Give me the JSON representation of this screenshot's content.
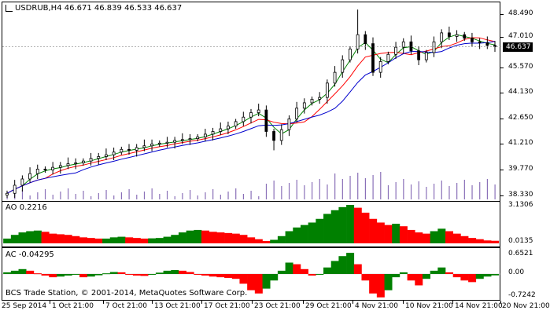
{
  "chart": {
    "symbol_line": "USDRUB,H4  46.671 46.839 46.533 46.637",
    "last_price": "46.637",
    "price_axis": [
      "48.490",
      "47.010",
      "45.570",
      "44.130",
      "42.650",
      "41.210",
      "39.770",
      "38.330"
    ],
    "ao_label": "AO 0.2216",
    "ao_axis": [
      "3.1306",
      "0.0135"
    ],
    "ac_label": "AC -0.04295",
    "ac_axis": [
      "0.6521",
      "0.00",
      "-0.7242"
    ],
    "copyright": "BCS Trade Station, © 2001-2014, MetaQuotes Software Corp.",
    "time_axis": [
      "25 Sep 2014",
      "1 Oct 21:00",
      "7 Oct 21:00",
      "13 Oct 21:00",
      "17 Oct 21:00",
      "23 Oct 21:00",
      "29 Oct 21:00",
      "4 Nov 21:00",
      "10 Nov 21:00",
      "14 Nov 21:00",
      "20 Nov 21:00"
    ],
    "colors": {
      "up": "#008000",
      "down": "#ff0000",
      "ma_fast": "#008000",
      "ma_mid": "#ff0000",
      "ma_slow": "#0000cd",
      "volume": "#8a70b8",
      "candle": "#000000"
    }
  },
  "chart_data": {
    "type": "candlestick",
    "symbol": "USDRUB",
    "timeframe": "H4",
    "ohlc_last": {
      "open": 46.671,
      "high": 46.839,
      "low": 46.533,
      "close": 46.637
    },
    "price_range": [
      38.33,
      48.49
    ],
    "series": [
      {
        "name": "Close",
        "values": [
          38.45,
          38.9,
          39.25,
          39.55,
          39.8,
          39.75,
          39.9,
          40.0,
          40.1,
          40.15,
          40.25,
          40.4,
          40.5,
          40.6,
          40.75,
          40.9,
          40.85,
          41.0,
          41.1,
          41.2,
          41.25,
          41.3,
          41.4,
          41.45,
          41.5,
          41.6,
          41.75,
          41.9,
          42.05,
          42.2,
          42.45,
          42.7,
          42.95,
          43.1,
          41.9,
          41.4,
          42.0,
          42.6,
          43.2,
          43.5,
          43.7,
          43.8,
          44.6,
          45.2,
          45.9,
          46.5,
          47.3,
          46.8,
          45.2,
          45.8,
          46.2,
          46.6,
          46.9,
          46.4,
          45.9,
          46.3,
          46.9,
          47.4,
          47.2,
          47.3,
          47.1,
          46.9,
          46.85,
          46.7,
          46.637
        ]
      },
      {
        "name": "AO",
        "values": [
          0.4,
          0.7,
          0.9,
          1.0,
          1.05,
          0.95,
          0.8,
          0.75,
          0.7,
          0.6,
          0.5,
          0.45,
          0.4,
          0.4,
          0.5,
          0.55,
          0.5,
          0.45,
          0.4,
          0.42,
          0.45,
          0.55,
          0.7,
          0.9,
          1.05,
          1.1,
          1.05,
          0.95,
          0.9,
          0.85,
          0.8,
          0.7,
          0.5,
          0.35,
          0.2,
          0.3,
          0.6,
          1.0,
          1.3,
          1.5,
          1.7,
          2.0,
          2.4,
          2.7,
          2.95,
          3.13,
          2.9,
          2.5,
          2.0,
          1.7,
          1.5,
          1.6,
          1.4,
          1.1,
          0.9,
          0.8,
          1.0,
          1.2,
          1.0,
          0.8,
          0.6,
          0.45,
          0.35,
          0.25,
          0.2216
        ]
      },
      {
        "name": "AC",
        "values": [
          0.05,
          0.1,
          0.15,
          0.1,
          0.02,
          -0.05,
          -0.1,
          -0.08,
          -0.05,
          -0.02,
          -0.1,
          -0.08,
          -0.04,
          0.02,
          0.06,
          0.05,
          0.0,
          -0.05,
          -0.06,
          -0.02,
          0.04,
          0.1,
          0.12,
          0.1,
          0.06,
          0.0,
          -0.05,
          -0.08,
          -0.1,
          -0.12,
          -0.15,
          -0.3,
          -0.5,
          -0.6,
          -0.45,
          -0.2,
          0.1,
          0.35,
          0.3,
          0.15,
          -0.05,
          0.0,
          0.2,
          0.4,
          0.55,
          0.65,
          0.3,
          -0.2,
          -0.6,
          -0.72,
          -0.5,
          -0.1,
          0.05,
          -0.2,
          -0.35,
          -0.15,
          0.1,
          0.2,
          0.05,
          -0.1,
          -0.2,
          -0.25,
          -0.15,
          -0.08,
          -0.04295
        ]
      }
    ],
    "ao_range": [
      0.0135,
      3.1306
    ],
    "ac_range": [
      -0.7242,
      0.6521
    ]
  }
}
